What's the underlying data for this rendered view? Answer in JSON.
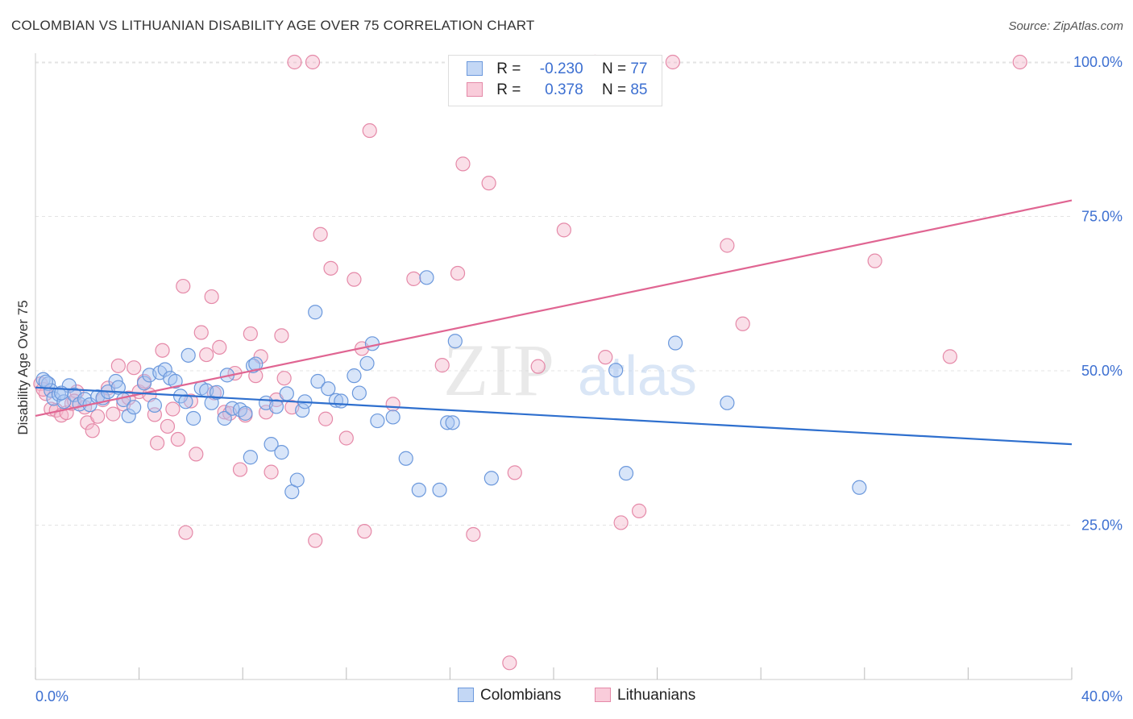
{
  "title": "COLOMBIAN VS LITHUANIAN DISABILITY AGE OVER 75 CORRELATION CHART",
  "source": "Source: ZipAtlas.com",
  "legend_top": {
    "r_label": "R =",
    "n_label": "N =",
    "rows": [
      {
        "r": "-0.230",
        "n": "77"
      },
      {
        "r": "0.378",
        "n": "85"
      }
    ]
  },
  "bottom_legend": [
    "Colombians",
    "Lithuanians"
  ],
  "colors": {
    "blue_fill": "#a9c6f1",
    "blue_stroke": "#6b98dc",
    "blue_line": "#2e6fce",
    "pink_fill": "#f5b8cb",
    "pink_stroke": "#e589a8",
    "pink_line": "#e06592",
    "axis_text": "#3c6fd1",
    "grid": "#e3e3e3"
  },
  "chart_data": {
    "type": "scatter",
    "title": "COLOMBIAN VS LITHUANIAN DISABILITY AGE OVER 75 CORRELATION CHART",
    "xlabel": "",
    "ylabel": "Disability Age Over 75",
    "xlim": [
      0,
      40
    ],
    "ylim": [
      0,
      102
    ],
    "x_tick_labels": [
      "0.0%",
      "40.0%"
    ],
    "y_ticks": [
      25,
      50,
      75,
      100
    ],
    "y_tick_labels": [
      "25.0%",
      "50.0%",
      "75.0%",
      "100.0%"
    ],
    "grid": true,
    "legend_position": "top-center",
    "watermark": "ZIPatlas",
    "series": [
      {
        "name": "Colombians",
        "r": -0.23,
        "n": 77,
        "trend": {
          "x": [
            0,
            40
          ],
          "y": [
            47.3,
            38.1
          ]
        },
        "points": [
          [
            0.3,
            48.6
          ],
          [
            0.5,
            47.9
          ],
          [
            0.6,
            46.8
          ],
          [
            0.7,
            45.5
          ],
          [
            0.9,
            46.2
          ],
          [
            1.1,
            45.0
          ],
          [
            1.3,
            47.6
          ],
          [
            1.5,
            46.1
          ],
          [
            1.7,
            44.6
          ],
          [
            1.9,
            45.4
          ],
          [
            2.1,
            44.5
          ],
          [
            2.4,
            45.8
          ],
          [
            2.6,
            45.6
          ],
          [
            2.8,
            46.6
          ],
          [
            3.1,
            48.3
          ],
          [
            3.2,
            47.3
          ],
          [
            3.4,
            45.3
          ],
          [
            3.6,
            42.7
          ],
          [
            3.8,
            44.1
          ],
          [
            4.2,
            48.0
          ],
          [
            4.4,
            49.3
          ],
          [
            4.6,
            44.4
          ],
          [
            4.8,
            49.7
          ],
          [
            5.0,
            50.2
          ],
          [
            5.2,
            48.8
          ],
          [
            5.4,
            48.3
          ],
          [
            5.6,
            45.9
          ],
          [
            5.8,
            45.0
          ],
          [
            5.9,
            52.5
          ],
          [
            6.1,
            42.3
          ],
          [
            6.4,
            47.2
          ],
          [
            6.6,
            46.8
          ],
          [
            6.8,
            44.8
          ],
          [
            7.0,
            46.5
          ],
          [
            7.3,
            42.3
          ],
          [
            7.4,
            49.3
          ],
          [
            7.6,
            43.9
          ],
          [
            7.9,
            43.7
          ],
          [
            8.1,
            43.1
          ],
          [
            8.3,
            36.0
          ],
          [
            8.4,
            50.8
          ],
          [
            8.5,
            51.1
          ],
          [
            8.9,
            44.8
          ],
          [
            9.1,
            38.1
          ],
          [
            9.3,
            44.2
          ],
          [
            9.5,
            36.8
          ],
          [
            9.7,
            46.3
          ],
          [
            9.9,
            30.4
          ],
          [
            10.1,
            32.3
          ],
          [
            10.3,
            43.6
          ],
          [
            10.4,
            45.0
          ],
          [
            10.8,
            59.5
          ],
          [
            10.9,
            48.3
          ],
          [
            11.3,
            47.1
          ],
          [
            11.6,
            45.2
          ],
          [
            11.8,
            45.1
          ],
          [
            12.3,
            49.2
          ],
          [
            12.5,
            46.4
          ],
          [
            12.8,
            51.2
          ],
          [
            13.0,
            54.4
          ],
          [
            13.2,
            41.9
          ],
          [
            13.8,
            42.5
          ],
          [
            14.3,
            35.8
          ],
          [
            14.8,
            30.7
          ],
          [
            15.1,
            65.1
          ],
          [
            15.6,
            30.7
          ],
          [
            15.9,
            41.6
          ],
          [
            16.1,
            41.6
          ],
          [
            16.2,
            54.8
          ],
          [
            17.6,
            32.6
          ],
          [
            22.4,
            50.1
          ],
          [
            22.8,
            33.4
          ],
          [
            24.7,
            54.5
          ],
          [
            26.7,
            44.8
          ],
          [
            31.8,
            31.1
          ],
          [
            0.4,
            48.2
          ],
          [
            1.0,
            46.4
          ]
        ]
      },
      {
        "name": "Lithuanians",
        "r": 0.378,
        "n": 85,
        "trend": {
          "x": [
            0,
            40
          ],
          "y": [
            42.7,
            77.6
          ]
        },
        "points": [
          [
            0.2,
            47.9
          ],
          [
            0.4,
            46.3
          ],
          [
            0.6,
            43.8
          ],
          [
            0.8,
            43.6
          ],
          [
            1.0,
            42.8
          ],
          [
            1.2,
            43.2
          ],
          [
            1.4,
            44.7
          ],
          [
            1.6,
            46.6
          ],
          [
            1.9,
            44.1
          ],
          [
            2.0,
            41.6
          ],
          [
            2.2,
            40.3
          ],
          [
            2.4,
            42.6
          ],
          [
            2.6,
            45.3
          ],
          [
            2.8,
            47.2
          ],
          [
            3.0,
            43.0
          ],
          [
            3.2,
            50.8
          ],
          [
            3.4,
            44.6
          ],
          [
            3.6,
            45.6
          ],
          [
            3.8,
            50.5
          ],
          [
            4.0,
            46.6
          ],
          [
            4.2,
            48.3
          ],
          [
            4.4,
            46.1
          ],
          [
            4.6,
            42.9
          ],
          [
            4.7,
            38.3
          ],
          [
            4.9,
            53.3
          ],
          [
            5.1,
            41.0
          ],
          [
            5.3,
            43.8
          ],
          [
            5.5,
            38.9
          ],
          [
            5.7,
            63.7
          ],
          [
            5.8,
            23.8
          ],
          [
            6.0,
            45.1
          ],
          [
            6.2,
            36.5
          ],
          [
            6.4,
            56.2
          ],
          [
            6.6,
            52.6
          ],
          [
            6.8,
            62.0
          ],
          [
            6.9,
            46.4
          ],
          [
            7.1,
            53.8
          ],
          [
            7.3,
            43.3
          ],
          [
            7.5,
            43.1
          ],
          [
            7.7,
            49.6
          ],
          [
            7.9,
            34.0
          ],
          [
            8.1,
            42.8
          ],
          [
            8.3,
            56.0
          ],
          [
            8.5,
            49.2
          ],
          [
            8.7,
            52.3
          ],
          [
            8.9,
            43.3
          ],
          [
            9.1,
            33.6
          ],
          [
            9.3,
            45.3
          ],
          [
            9.5,
            55.7
          ],
          [
            9.6,
            48.8
          ],
          [
            9.9,
            44.1
          ],
          [
            10.0,
            100.0
          ],
          [
            10.7,
            100.0
          ],
          [
            10.8,
            22.5
          ],
          [
            11.0,
            72.1
          ],
          [
            11.2,
            42.2
          ],
          [
            11.4,
            66.6
          ],
          [
            12.0,
            39.1
          ],
          [
            12.3,
            64.8
          ],
          [
            12.6,
            53.6
          ],
          [
            12.7,
            24.0
          ],
          [
            12.9,
            88.9
          ],
          [
            13.8,
            44.6
          ],
          [
            14.6,
            64.9
          ],
          [
            15.7,
            50.9
          ],
          [
            16.3,
            65.8
          ],
          [
            16.5,
            83.5
          ],
          [
            16.9,
            23.5
          ],
          [
            17.5,
            80.4
          ],
          [
            18.3,
            2.7
          ],
          [
            18.5,
            33.5
          ],
          [
            19.4,
            50.7
          ],
          [
            20.4,
            72.8
          ],
          [
            21.6,
            100.0
          ],
          [
            22.0,
            52.2
          ],
          [
            22.6,
            25.4
          ],
          [
            23.3,
            27.3
          ],
          [
            24.6,
            100.0
          ],
          [
            26.7,
            70.3
          ],
          [
            27.3,
            57.6
          ],
          [
            32.4,
            67.8
          ],
          [
            35.3,
            52.3
          ],
          [
            38.0,
            100.0
          ],
          [
            0.3,
            47.0
          ],
          [
            1.5,
            45.1
          ]
        ]
      }
    ]
  }
}
